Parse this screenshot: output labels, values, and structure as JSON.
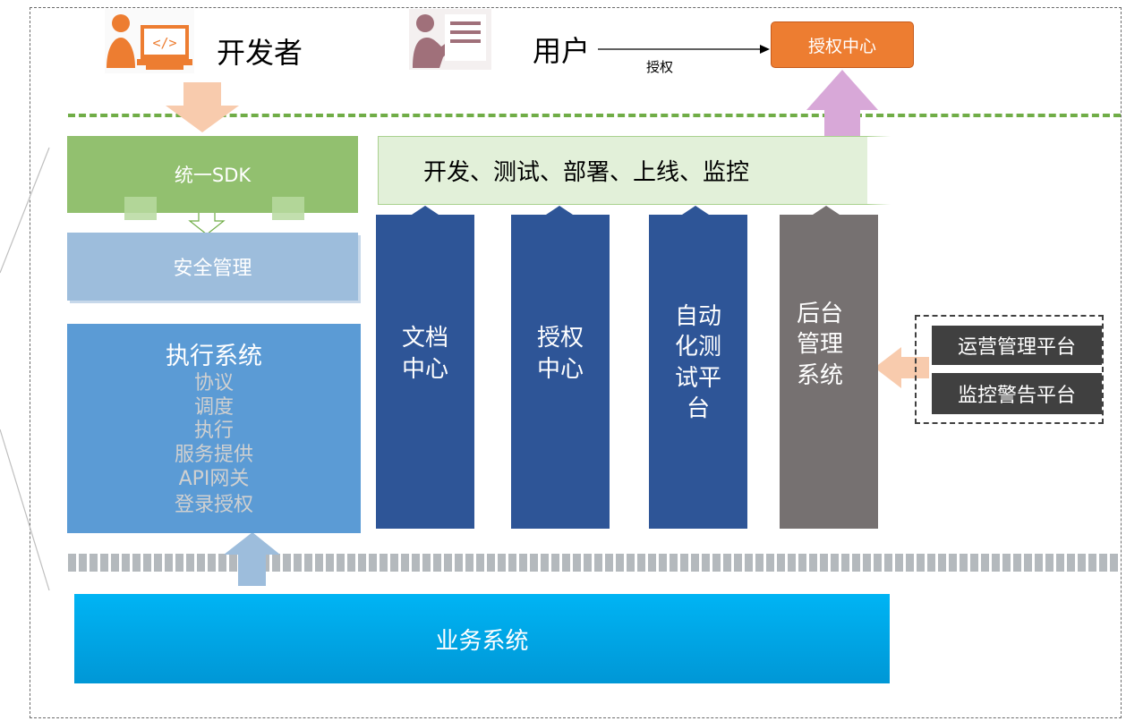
{
  "actors": {
    "developer_label": "开发者",
    "user_label": "用户"
  },
  "edges": {
    "user_to_auth_label": "授权"
  },
  "auth_center_top": "授权中心",
  "unified_sdk": "统一SDK",
  "security": "安全管理",
  "execution": {
    "title": "执行系统",
    "items": [
      "协议",
      "调度",
      "执行",
      "服务提供",
      "API网关",
      "登录授权"
    ]
  },
  "lifecycle_bar": "开发、测试、部署、上线、监控",
  "pillars": [
    {
      "lines": [
        "文档",
        "中心"
      ]
    },
    {
      "lines": [
        "授权",
        "中心"
      ]
    },
    {
      "lines": [
        "自动",
        "化测",
        "试平",
        "台"
      ]
    },
    {
      "lines": [
        "后台",
        "管理",
        "系统"
      ]
    }
  ],
  "side_platforms": [
    "运营管理平台",
    "监控警告平台"
  ],
  "business": "业务系统",
  "colors": {
    "green": "#92c06f",
    "light_green": "#e2f0d9",
    "light_blue": "#9dbddc",
    "blue": "#5b9bd5",
    "navy": "#2e5597",
    "gray": "#767171",
    "cyan": "#00b0f0",
    "orange": "#ed7d31",
    "peach": "#f8cbad",
    "pink": "#d8a8d8",
    "mauve": "#a0707a"
  }
}
